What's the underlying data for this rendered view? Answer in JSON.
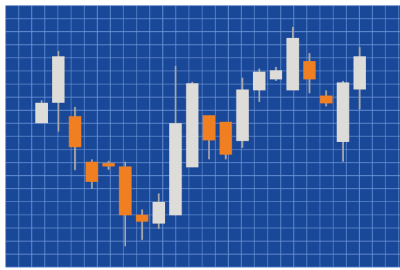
{
  "chart_data": {
    "type": "candlestick",
    "title": "",
    "xlabel": "",
    "ylabel": "",
    "ylim": [
      0,
      100
    ],
    "grid": true,
    "legend": "none",
    "colors": {
      "background": "#1a4898",
      "grid": "#6f97d9",
      "up": "#dedcd8",
      "down": "#f07f22",
      "wick": "#a9a9a9"
    },
    "candles": [
      {
        "open": 55.0,
        "high": 63.8,
        "low": 55.0,
        "close": 62.8
      },
      {
        "open": 62.8,
        "high": 82.6,
        "low": 51.8,
        "close": 80.6
      },
      {
        "open": 57.7,
        "high": 61.2,
        "low": 37.1,
        "close": 45.9
      },
      {
        "open": 40.3,
        "high": 41.2,
        "low": 30.0,
        "close": 32.6
      },
      {
        "open": 39.8,
        "high": 40.6,
        "low": 37.3,
        "close": 38.5
      },
      {
        "open": 38.5,
        "high": 40.3,
        "low": 8.0,
        "close": 19.8
      },
      {
        "open": 20.1,
        "high": 22.1,
        "low": 10.4,
        "close": 17.4
      },
      {
        "open": 16.7,
        "high": 28.2,
        "low": 14.6,
        "close": 24.9
      },
      {
        "open": 19.8,
        "high": 77.0,
        "low": 19.8,
        "close": 55.0
      },
      {
        "open": 38.2,
        "high": 70.9,
        "low": 38.2,
        "close": 70.3
      },
      {
        "open": 58.1,
        "high": 58.1,
        "low": 41.2,
        "close": 48.5
      },
      {
        "open": 55.6,
        "high": 55.6,
        "low": 41.2,
        "close": 43.0
      },
      {
        "open": 48.2,
        "high": 72.4,
        "low": 45.6,
        "close": 67.9
      },
      {
        "open": 67.6,
        "high": 75.9,
        "low": 63.2,
        "close": 74.7
      },
      {
        "open": 71.8,
        "high": 76.5,
        "low": 71.2,
        "close": 75.3
      },
      {
        "open": 67.6,
        "high": 91.8,
        "low": 67.6,
        "close": 87.6
      },
      {
        "open": 78.8,
        "high": 81.8,
        "low": 66.5,
        "close": 71.8
      },
      {
        "open": 65.6,
        "high": 67.6,
        "low": 61.5,
        "close": 62.6
      },
      {
        "open": 47.9,
        "high": 71.2,
        "low": 40.3,
        "close": 70.6
      },
      {
        "open": 67.9,
        "high": 84.1,
        "low": 60.3,
        "close": 80.6
      }
    ]
  }
}
